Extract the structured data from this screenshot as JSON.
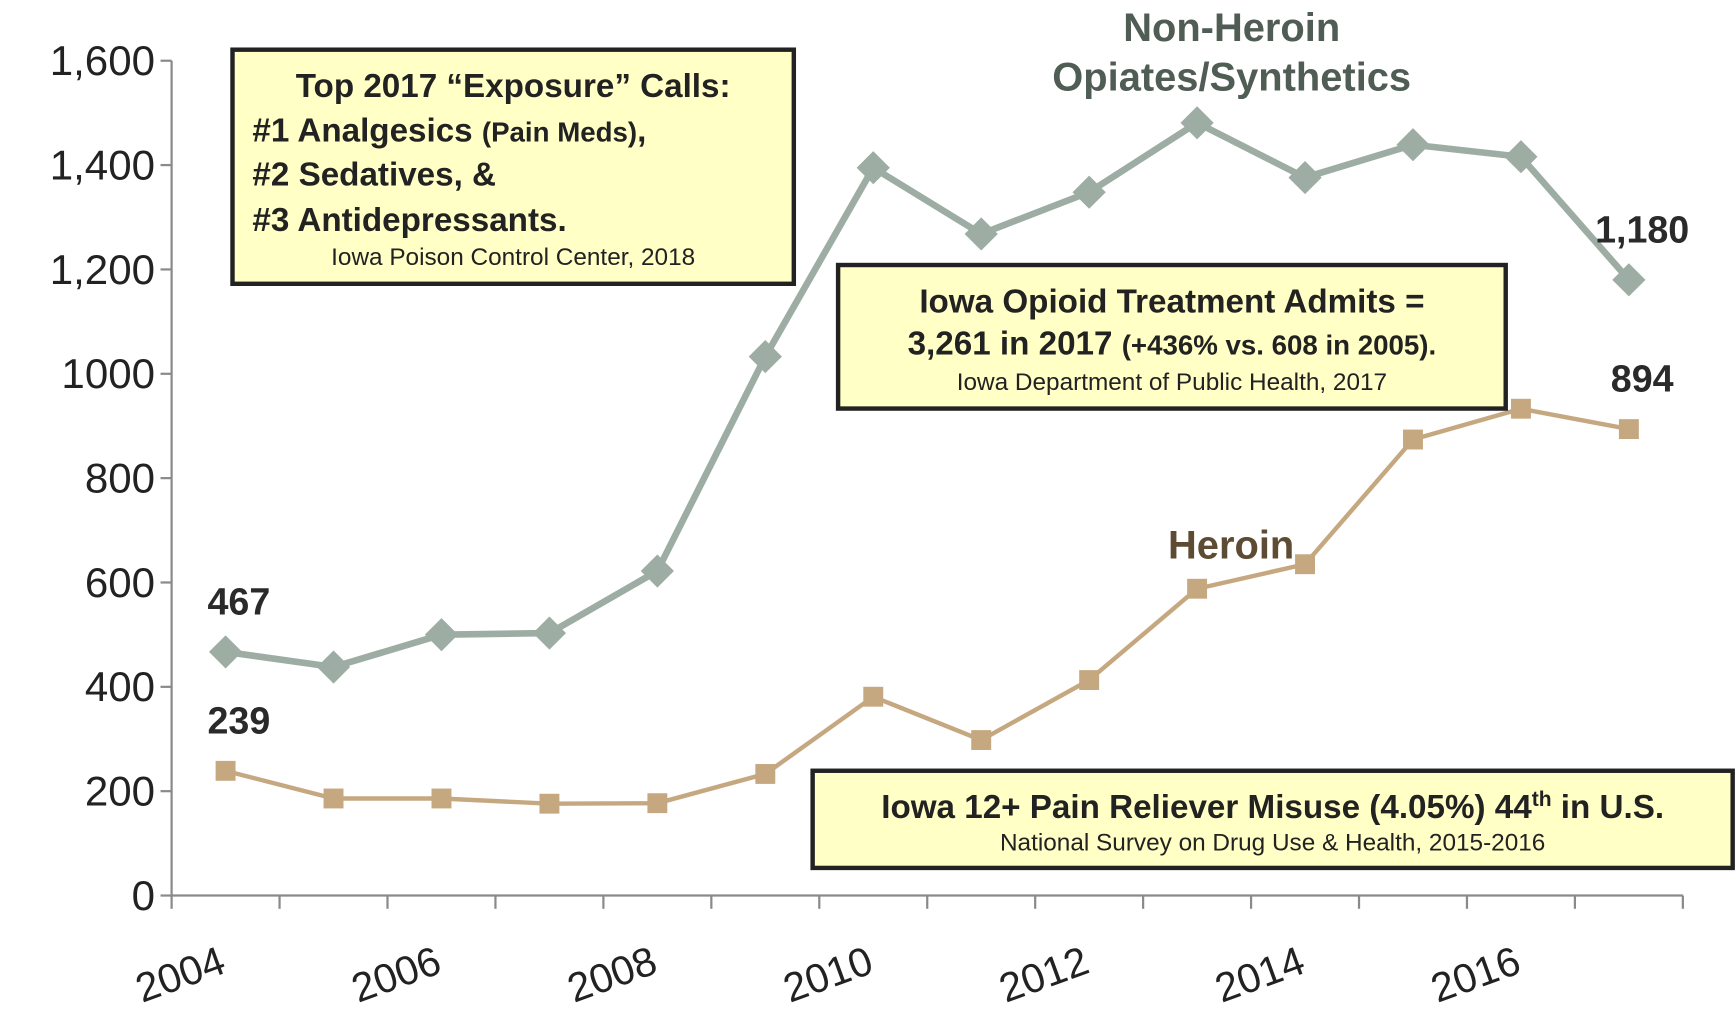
{
  "chart_data": {
    "type": "line",
    "x": [
      2004,
      2005,
      2006,
      2007,
      2008,
      2009,
      2010,
      2011,
      2012,
      2013,
      2014,
      2015,
      2016,
      2017
    ],
    "series": [
      {
        "name": "Non-Heroin Opiates/Synthetics",
        "color": "#9dada4",
        "label_color": "#4f5d55",
        "marker": "diamond",
        "values": [
          467,
          438,
          500,
          503,
          622,
          1033,
          1395,
          1268,
          1348,
          1481,
          1376,
          1439,
          1416,
          1180
        ],
        "value_labels": [
          "467",
          null,
          null,
          null,
          null,
          null,
          null,
          null,
          null,
          null,
          null,
          null,
          null,
          "1,180"
        ]
      },
      {
        "name": "Heroin",
        "color": "#c6a880",
        "label_color": "#5e4b33",
        "marker": "square",
        "values": [
          239,
          186,
          186,
          176,
          177,
          233,
          381,
          298,
          413,
          588,
          635,
          874,
          933,
          894
        ],
        "value_labels": [
          "239",
          null,
          null,
          null,
          null,
          null,
          null,
          null,
          null,
          null,
          null,
          null,
          null,
          "894"
        ]
      }
    ],
    "xlim": [
      2004,
      2018
    ],
    "xticks": [
      2004,
      2006,
      2008,
      2010,
      2012,
      2014,
      2016
    ],
    "x_minor_ticks": [
      2005,
      2007,
      2009,
      2011,
      2013,
      2015,
      2017,
      2018
    ],
    "ylim": [
      0,
      1600
    ],
    "yticks": [
      0,
      200,
      400,
      600,
      800,
      1000,
      {
        "value": 1200,
        "label": "1,200"
      },
      {
        "value": 1400,
        "label": "1,400"
      },
      {
        "value": 1600,
        "label": "1,600"
      }
    ],
    "grid": false,
    "annotations": [
      {
        "lines": [
          [
            {
              "text": "Top 2017 “Exposure” Calls:"
            }
          ],
          [
            {
              "text": "#1 Analgesics "
            },
            {
              "text": "(Pain Meds)",
              "size": "small"
            },
            {
              "text": ","
            }
          ],
          [
            {
              "text": "#2 Sedatives, &"
            }
          ],
          [
            {
              "text": "#3 Antidepressants."
            }
          ]
        ],
        "source": "Iowa Poison Control Center, 2018"
      },
      {
        "lines": [
          [
            {
              "text": "Iowa Opioid Treatment Admits ="
            }
          ],
          [
            {
              "text": "3,261 in 2017 "
            },
            {
              "text": "(+436% vs. 608 in 2005).",
              "size": "small"
            }
          ]
        ],
        "source": "Iowa Department of Public Health, 2017"
      },
      {
        "lines": [
          [
            {
              "text": "Iowa 12+ Pain Reliever Misuse (4.05%) 44"
            },
            {
              "text": "th",
              "size": "sup"
            },
            {
              "text": " in U.S."
            }
          ]
        ],
        "source": "National Survey on Drug Use & Health, 2015-2016"
      }
    ]
  }
}
